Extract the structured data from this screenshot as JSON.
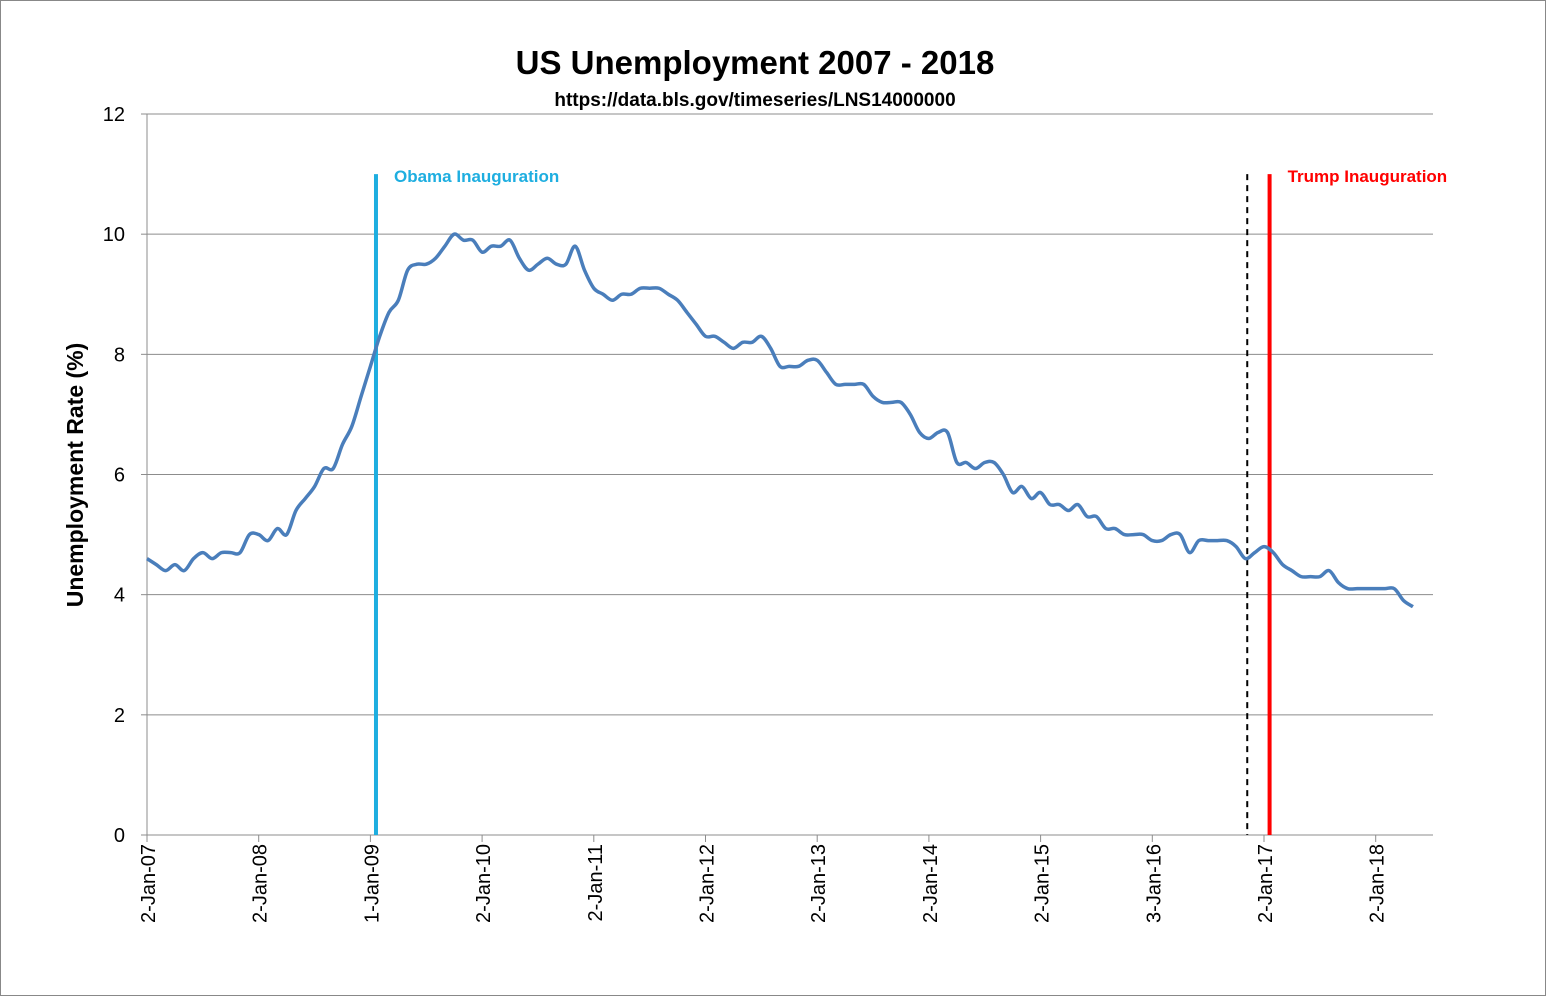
{
  "chart_data": {
    "type": "line",
    "title": "US Unemployment 2007 - 2018",
    "subtitle": "https://data.bls.gov/timeseries/LNS14000000",
    "xlabel": "",
    "ylabel": "Unemployment Rate (%)",
    "ylim": [
      0,
      12
    ],
    "yticks": [
      "0",
      "2",
      "4",
      "6",
      "8",
      "10",
      "12"
    ],
    "grid": "horizontal",
    "x_start": "Jan 2007",
    "x_frequency": "monthly",
    "xticks": [
      "2-Jan-07",
      "2-Jan-08",
      "1-Jan-09",
      "2-Jan-10",
      "2-Jan-11",
      "2-Jan-12",
      "2-Jan-13",
      "2-Jan-14",
      "2-Jan-15",
      "3-Jan-16",
      "2-Jan-17",
      "2-Jan-18"
    ],
    "series": [
      {
        "name": "Unemployment Rate",
        "color": "#4a7ebb",
        "values": [
          4.6,
          4.5,
          4.4,
          4.5,
          4.4,
          4.6,
          4.7,
          4.6,
          4.7,
          4.7,
          4.7,
          5.0,
          5.0,
          4.9,
          5.1,
          5.0,
          5.4,
          5.6,
          5.8,
          6.1,
          6.1,
          6.5,
          6.8,
          7.3,
          7.8,
          8.3,
          8.7,
          8.9,
          9.4,
          9.5,
          9.5,
          9.6,
          9.8,
          10.0,
          9.9,
          9.9,
          9.7,
          9.8,
          9.8,
          9.9,
          9.6,
          9.4,
          9.5,
          9.6,
          9.5,
          9.5,
          9.8,
          9.4,
          9.1,
          9.0,
          8.9,
          9.0,
          9.0,
          9.1,
          9.1,
          9.1,
          9.0,
          8.9,
          8.7,
          8.5,
          8.3,
          8.3,
          8.2,
          8.1,
          8.2,
          8.2,
          8.3,
          8.1,
          7.8,
          7.8,
          7.8,
          7.9,
          7.9,
          7.7,
          7.5,
          7.5,
          7.5,
          7.5,
          7.3,
          7.2,
          7.2,
          7.2,
          7.0,
          6.7,
          6.6,
          6.7,
          6.7,
          6.2,
          6.2,
          6.1,
          6.2,
          6.2,
          6.0,
          5.7,
          5.8,
          5.6,
          5.7,
          5.5,
          5.5,
          5.4,
          5.5,
          5.3,
          5.3,
          5.1,
          5.1,
          5.0,
          5.0,
          5.0,
          4.9,
          4.9,
          5.0,
          5.0,
          4.7,
          4.9,
          4.9,
          4.9,
          4.9,
          4.8,
          4.6,
          4.7,
          4.8,
          4.7,
          4.5,
          4.4,
          4.3,
          4.3,
          4.3,
          4.4,
          4.2,
          4.1,
          4.1,
          4.1,
          4.1,
          4.1,
          4.1,
          3.9,
          3.8
        ]
      }
    ],
    "annotations": [
      {
        "label": "Obama Inauguration",
        "date_years": 2009.05,
        "y_top": 11,
        "color": "#1eaee0",
        "style": "solid"
      },
      {
        "label": "Trump Inauguration",
        "date_years": 2017.05,
        "y_top": 11,
        "color": "#ff0000",
        "style": "solid"
      },
      {
        "label": "",
        "date_years": 2016.85,
        "y_top": 11,
        "color": "#000000",
        "style": "dashed"
      }
    ]
  }
}
